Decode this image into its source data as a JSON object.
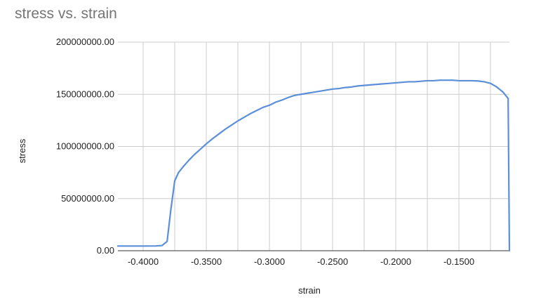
{
  "chart_data": {
    "type": "line",
    "title": "stress vs. strain",
    "xlabel": "strain",
    "ylabel": "stress",
    "xlim": [
      -0.42,
      -0.11
    ],
    "ylim": [
      0,
      200000000
    ],
    "x_ticks": [
      -0.4,
      -0.35,
      -0.3,
      -0.25,
      -0.2,
      -0.15
    ],
    "x_tick_labels": [
      "-0.4000",
      "-0.3500",
      "-0.3000",
      "-0.2500",
      "-0.2000",
      "-0.1500"
    ],
    "y_ticks": [
      0,
      50000000,
      100000000,
      150000000,
      200000000
    ],
    "y_tick_labels": [
      "0.00",
      "50000000.00",
      "100000000.00",
      "150000000.00",
      "200000000.00"
    ],
    "grid": true,
    "legend": "none",
    "series": [
      {
        "color": "#5b8fd9",
        "x": [
          -0.42,
          -0.41,
          -0.4,
          -0.39,
          -0.385,
          -0.381,
          -0.378,
          -0.375,
          -0.372,
          -0.368,
          -0.364,
          -0.36,
          -0.355,
          -0.35,
          -0.345,
          -0.34,
          -0.335,
          -0.33,
          -0.325,
          -0.32,
          -0.315,
          -0.31,
          -0.305,
          -0.3,
          -0.295,
          -0.29,
          -0.285,
          -0.28,
          -0.275,
          -0.27,
          -0.265,
          -0.26,
          -0.255,
          -0.25,
          -0.245,
          -0.24,
          -0.235,
          -0.23,
          -0.225,
          -0.22,
          -0.215,
          -0.21,
          -0.205,
          -0.2,
          -0.195,
          -0.19,
          -0.185,
          -0.18,
          -0.175,
          -0.17,
          -0.165,
          -0.16,
          -0.155,
          -0.15,
          -0.145,
          -0.14,
          -0.135,
          -0.13,
          -0.125,
          -0.12,
          -0.115,
          -0.111,
          -0.11
        ],
        "y": [
          4500000,
          4500000,
          4500000,
          4600000,
          5000000,
          9000000,
          40000000,
          67000000,
          75000000,
          81000000,
          86500000,
          91500000,
          97000000,
          102500000,
          107500000,
          112000000,
          116500000,
          120500000,
          124500000,
          128000000,
          131500000,
          134500000,
          137500000,
          139500000,
          142500000,
          144500000,
          147000000,
          149000000,
          150000000,
          151000000,
          152000000,
          153000000,
          154000000,
          155000000,
          155500000,
          156500000,
          157000000,
          158000000,
          158500000,
          159000000,
          159500000,
          160000000,
          160500000,
          161000000,
          161500000,
          162000000,
          162000000,
          162500000,
          163000000,
          163000000,
          163500000,
          163500000,
          163500000,
          163000000,
          163000000,
          163000000,
          162800000,
          162000000,
          160500000,
          157000000,
          152000000,
          146000000,
          0
        ]
      }
    ]
  }
}
